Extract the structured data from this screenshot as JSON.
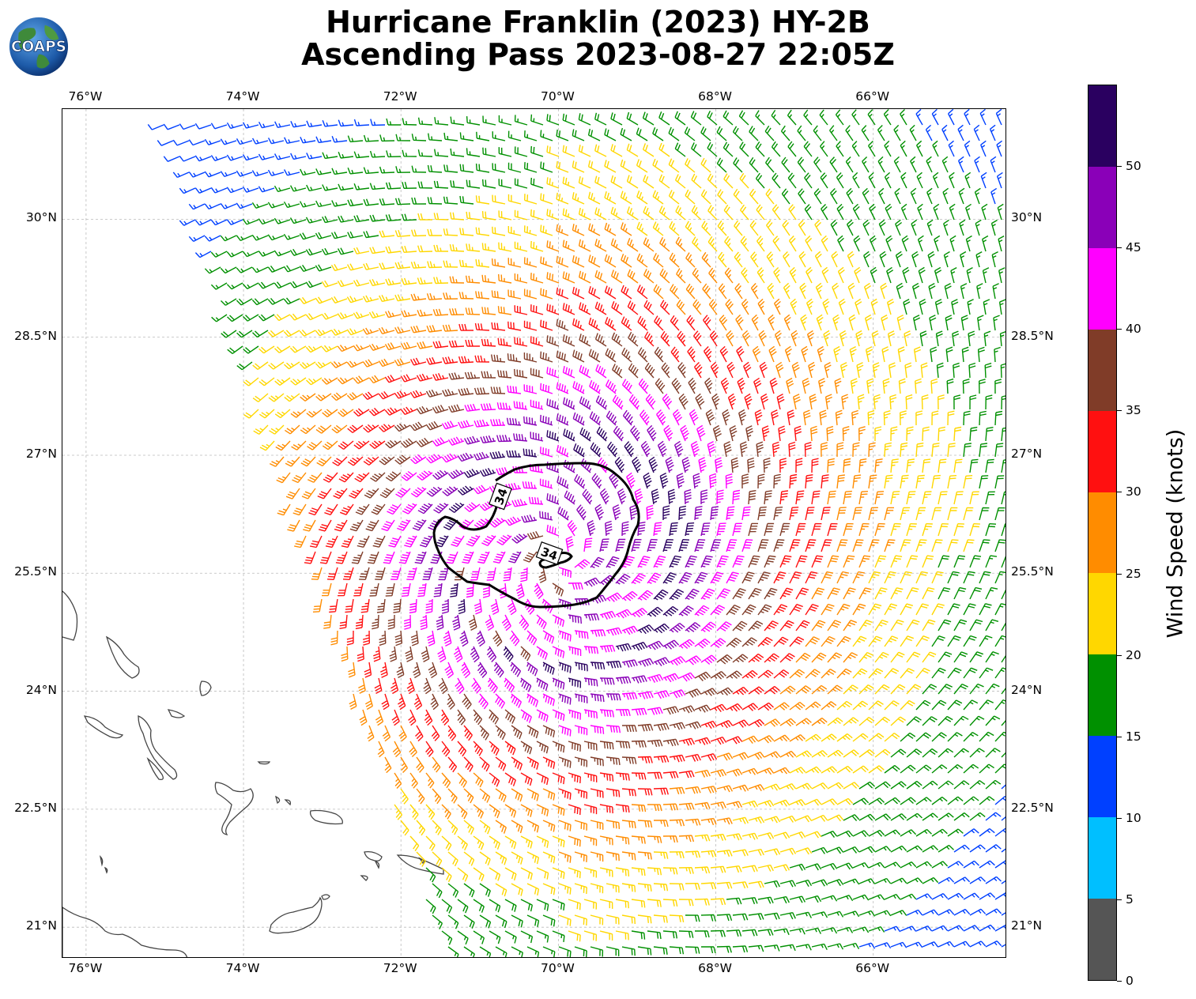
{
  "title": {
    "line1": "Hurricane Franklin (2023) HY-2B",
    "line2": "Ascending Pass 2023-08-27 22:05Z"
  },
  "logo": {
    "text": "COAPS",
    "icon": "globe-icon"
  },
  "map": {
    "lon_labels": [
      "76°W",
      "74°W",
      "72°W",
      "70°W",
      "68°W",
      "66°W"
    ],
    "lat_labels": [
      "30°N",
      "28.5°N",
      "27°N",
      "25.5°N",
      "24°N",
      "22.5°N",
      "21°N"
    ],
    "lon_range": [
      -76.3,
      -64.3
    ],
    "lat_range": [
      20.6,
      31.4
    ],
    "gridlines": true,
    "contour_label": "34",
    "contour_color": "#000000",
    "storm_center": {
      "lon": -70.0,
      "lat": 25.7
    }
  },
  "colorbar": {
    "label": "Wind Speed (knots)",
    "tick_labels": [
      "0",
      "5",
      "10",
      "15",
      "20",
      "25",
      "30",
      "35",
      "40",
      "45",
      "50"
    ],
    "bins": [
      {
        "range": "0-5",
        "color": "#555555"
      },
      {
        "range": "5-10",
        "color": "#00bfff"
      },
      {
        "range": "10-15",
        "color": "#0040ff"
      },
      {
        "range": "15-20",
        "color": "#009000"
      },
      {
        "range": "20-25",
        "color": "#ffd700"
      },
      {
        "range": "25-30",
        "color": "#ff8c00"
      },
      {
        "range": "30-35",
        "color": "#ff1010"
      },
      {
        "range": "35-40",
        "color": "#803c28"
      },
      {
        "range": "40-45",
        "color": "#ff00ff"
      },
      {
        "range": "45-50",
        "color": "#8a00b8"
      },
      {
        "range": "50+",
        "color": "#2a0060"
      }
    ]
  }
}
